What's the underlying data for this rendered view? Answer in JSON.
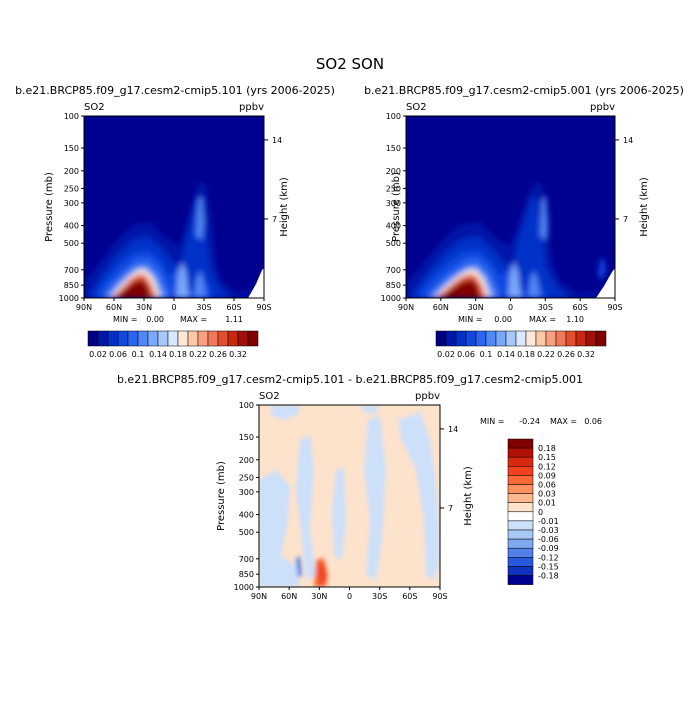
{
  "main_title": "SO2  SON",
  "chart_data": [
    {
      "type": "heatmap",
      "subtitle": "b.e21.BRCP85.f09_g17.cesm2-cmip5.101 (yrs 2006-2025)",
      "variable": "SO2",
      "units": "ppbv",
      "ylabel": "Pressure (mb)",
      "y2label": "Height (km)",
      "x_ticks": [
        "90N",
        "60N",
        "30N",
        "0",
        "30S",
        "60S",
        "90S"
      ],
      "y_ticks": [
        "100",
        "150",
        "200",
        "250",
        "300",
        "400",
        "500",
        "700",
        "850",
        "1000"
      ],
      "y2_ticks": [
        "14",
        "7"
      ],
      "min_label": "MIN =",
      "min_value": "0.00",
      "max_label": "MAX =",
      "max_value": "1.11",
      "colorbar_labels": [
        "0.02",
        "0.06",
        "0.1",
        "0.14",
        "0.18",
        "0.22",
        "0.26",
        "0.32"
      ]
    },
    {
      "type": "heatmap",
      "subtitle": "b.e21.BRCP85.f09_g17.cesm2-cmip5.001 (yrs 2006-2025)",
      "variable": "SO2",
      "units": "ppbv",
      "ylabel": "Pressure (mb)",
      "y2label": "Height (km)",
      "x_ticks": [
        "90N",
        "60N",
        "30N",
        "0",
        "30S",
        "60S",
        "90S"
      ],
      "y_ticks": [
        "100",
        "150",
        "200",
        "250",
        "300",
        "400",
        "500",
        "700",
        "850",
        "1000"
      ],
      "y2_ticks": [
        "14",
        "7"
      ],
      "min_label": "MIN =",
      "min_value": "0.00",
      "max_label": "MAX =",
      "max_value": "1.10",
      "colorbar_labels": [
        "0.02",
        "0.06",
        "0.1",
        "0.14",
        "0.18",
        "0.22",
        "0.26",
        "0.32"
      ]
    },
    {
      "type": "heatmap",
      "subtitle": "b.e21.BRCP85.f09_g17.cesm2-cmip5.101 - b.e21.BRCP85.f09_g17.cesm2-cmip5.001",
      "variable": "SO2",
      "units": "ppbv",
      "ylabel": "Pressure (mb)",
      "y2label": "Height (km)",
      "x_ticks": [
        "90N",
        "60N",
        "30N",
        "0",
        "30S",
        "60S",
        "90S"
      ],
      "y_ticks": [
        "100",
        "150",
        "200",
        "250",
        "300",
        "400",
        "500",
        "700",
        "850",
        "1000"
      ],
      "y2_ticks": [
        "14",
        "7"
      ],
      "min_label": "MIN =",
      "min_value": "-0.24",
      "max_label": "MAX =",
      "max_value": "0.06",
      "colorbar_labels": [
        "0.18",
        "0.15",
        "0.12",
        "0.09",
        "0.06",
        "0.03",
        "0.01",
        "0",
        "-0.01",
        "-0.03",
        "-0.06",
        "-0.09",
        "-0.12",
        "-0.15",
        "-0.18"
      ]
    }
  ],
  "colors": {
    "abs_scale": [
      "#000080",
      "#0018a8",
      "#0030c8",
      "#1048e0",
      "#2a66f0",
      "#5088f5",
      "#7aa8fa",
      "#a8c8fc",
      "#d8e8ff",
      "#fde8d8",
      "#fcc8a8",
      "#f8a080",
      "#f07858",
      "#e05030",
      "#c82810",
      "#a01008",
      "#800000"
    ],
    "diff_scale": [
      "#800000",
      "#b01008",
      "#d82810",
      "#f04020",
      "#f86838",
      "#fb9060",
      "#fdb890",
      "#fde2cc",
      "#ffffff",
      "#cce0fa",
      "#a8c8f5",
      "#80a8f0",
      "#5080e8",
      "#2858e0",
      "#1030c0",
      "#000090"
    ]
  }
}
